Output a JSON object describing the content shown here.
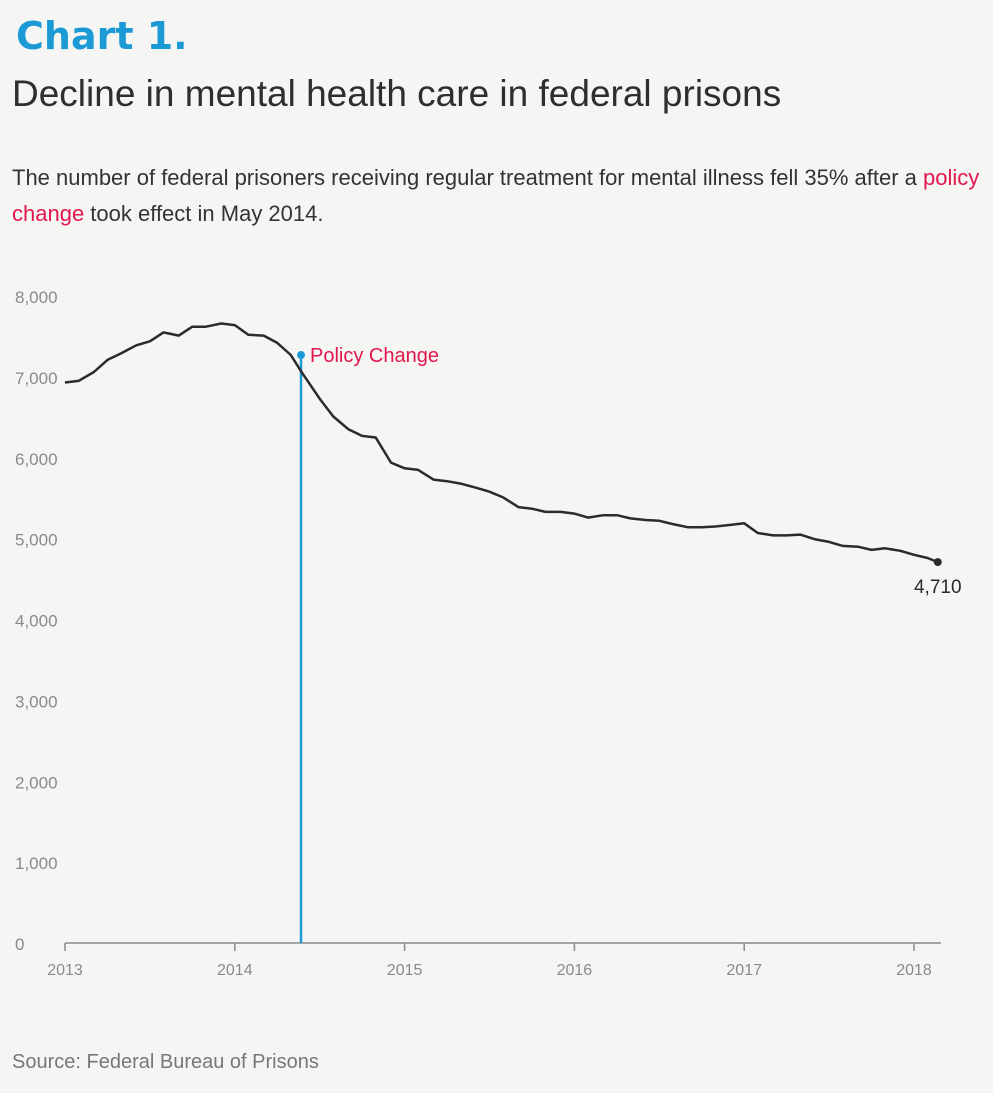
{
  "header": {
    "chart_number": "Chart 1.",
    "title": "Decline in mental health care in federal prisons",
    "subtitle_part1": "The number of federal prisoners receiving regular treatment for mental illness fell 35% after a ",
    "subtitle_highlight": "policy change",
    "subtitle_part2": " took effect in May 2014."
  },
  "footer": {
    "source": "Source: Federal Bureau of Prisons"
  },
  "colors": {
    "chart_number": "#1b9ad6",
    "highlight": "#e2174c",
    "line": "#2b2b2b",
    "marker": "#1b9ad6",
    "axis_text": "#8a8a8a"
  },
  "chart_data": {
    "type": "line",
    "title": "Decline in mental health care in federal prisons",
    "xlabel": "",
    "ylabel": "",
    "xlim": [
      2013,
      2018.15
    ],
    "ylim": [
      0,
      8000
    ],
    "yticks": [
      0,
      1000,
      2000,
      3000,
      4000,
      5000,
      6000,
      7000,
      8000
    ],
    "ytick_labels": [
      "0",
      "1,000",
      "2,000",
      "3,000",
      "4,000",
      "5,000",
      "6,000",
      "7,000",
      "8,000"
    ],
    "xticks": [
      2013,
      2014,
      2015,
      2016,
      2017,
      2018
    ],
    "xtick_labels": [
      "2013",
      "2014",
      "2015",
      "2016",
      "2017",
      "2018"
    ],
    "grid": false,
    "series": [
      {
        "x": [
          2013.0,
          2013.08,
          2013.17,
          2013.25,
          2013.33,
          2013.42,
          2013.5,
          2013.58,
          2013.67,
          2013.75,
          2013.83,
          2013.92,
          2014.0,
          2014.08,
          2014.17,
          2014.25,
          2014.33,
          2014.39,
          2014.5,
          2014.58,
          2014.67,
          2014.75,
          2014.83,
          2014.92,
          2015.0,
          2015.08,
          2015.17,
          2015.25,
          2015.33,
          2015.42,
          2015.5,
          2015.58,
          2015.67,
          2015.75,
          2015.83,
          2015.92,
          2016.0,
          2016.08,
          2016.17,
          2016.25,
          2016.33,
          2016.42,
          2016.5,
          2016.58,
          2016.67,
          2016.75,
          2016.83,
          2016.92,
          2017.0,
          2017.08,
          2017.17,
          2017.25,
          2017.33,
          2017.42,
          2017.5,
          2017.58,
          2017.67,
          2017.75,
          2017.83,
          2017.92,
          2018.0,
          2018.08,
          2018.14
        ],
        "values": [
          6930,
          6950,
          7060,
          7210,
          7290,
          7390,
          7440,
          7550,
          7510,
          7620,
          7620,
          7660,
          7640,
          7520,
          7510,
          7420,
          7270,
          7070,
          6730,
          6510,
          6350,
          6270,
          6250,
          5940,
          5870,
          5850,
          5730,
          5710,
          5680,
          5630,
          5580,
          5510,
          5390,
          5370,
          5330,
          5330,
          5310,
          5260,
          5290,
          5290,
          5250,
          5230,
          5220,
          5180,
          5140,
          5140,
          5150,
          5170,
          5190,
          5070,
          5040,
          5040,
          5050,
          4990,
          4960,
          4910,
          4900,
          4860,
          4880,
          4850,
          4800,
          4760,
          4710
        ]
      }
    ],
    "annotations": [
      {
        "label": "Policy Change",
        "x": 2014.39,
        "y": 7270
      },
      {
        "label": "4,710",
        "x": 2018.14,
        "y": 4710
      }
    ]
  }
}
